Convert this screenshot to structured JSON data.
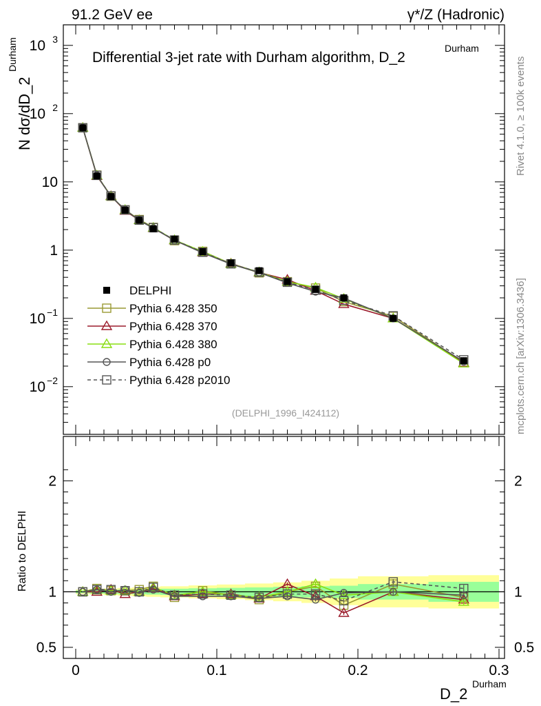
{
  "header": {
    "left": "91.2 GeV ee",
    "right": "γ*/Z (Hadronic)"
  },
  "side_labels": {
    "rivet": "Rivet 4.1.0, ≥ 100k events",
    "mcplots": "mcplots.cern.ch [arXiv:1306.3436]"
  },
  "chart_data": {
    "type": "line",
    "title": "Differential 3-jet rate with Durham algorithm, D_2",
    "title_sup": "Durham",
    "analysis_tag": "(DELPHI_1996_I424112)",
    "xlabel": "D_2",
    "xlabel_sup": "Durham",
    "ylabel": "N  dσ/dD_2",
    "ylabel_sup": "Durham",
    "ratio_ylabel": "Ratio to DELPHI",
    "xlim": [
      0,
      0.3
    ],
    "ylim_log": [
      0.002,
      2000
    ],
    "ratio_ylim": [
      0.4,
      2.4
    ],
    "x_ticks": [
      "0",
      "0.1",
      "0.2",
      "0.3"
    ],
    "x_tick_values": [
      0,
      0.1,
      0.2,
      0.3
    ],
    "y_ticks": [
      {
        "value": 1000,
        "base": "10",
        "exp": "3"
      },
      {
        "value": 100,
        "base": "10",
        "exp": "2"
      },
      {
        "value": 10,
        "base": "10",
        "exp": ""
      },
      {
        "value": 1,
        "base": "1",
        "exp": ""
      },
      {
        "value": 0.1,
        "base": "10",
        "exp": "−1"
      },
      {
        "value": 0.01,
        "base": "10",
        "exp": "−2"
      }
    ],
    "ratio_ticks": [
      "0.5",
      "1",
      "2"
    ],
    "ratio_tick_values": [
      0.5,
      1,
      2
    ],
    "bins": [
      [
        0,
        0.01
      ],
      [
        0.01,
        0.02
      ],
      [
        0.02,
        0.03
      ],
      [
        0.03,
        0.04
      ],
      [
        0.04,
        0.05
      ],
      [
        0.05,
        0.06
      ],
      [
        0.06,
        0.08
      ],
      [
        0.08,
        0.1
      ],
      [
        0.1,
        0.12
      ],
      [
        0.12,
        0.14
      ],
      [
        0.14,
        0.16
      ],
      [
        0.16,
        0.18
      ],
      [
        0.18,
        0.2
      ],
      [
        0.2,
        0.25
      ],
      [
        0.25,
        0.3
      ]
    ],
    "x": [
      0.005,
      0.015,
      0.025,
      0.035,
      0.045,
      0.055,
      0.07,
      0.09,
      0.11,
      0.13,
      0.15,
      0.17,
      0.19,
      0.225,
      0.275
    ],
    "band_inner": [
      0.012,
      0.015,
      0.018,
      0.02,
      0.022,
      0.025,
      0.028,
      0.032,
      0.036,
      0.04,
      0.045,
      0.05,
      0.055,
      0.07,
      0.09
    ],
    "band_outer": [
      0.02,
      0.025,
      0.03,
      0.035,
      0.04,
      0.045,
      0.05,
      0.058,
      0.066,
      0.075,
      0.085,
      0.1,
      0.12,
      0.14,
      0.15
    ],
    "data": {
      "name": "DELPHI",
      "values": [
        62,
        12.2,
        6.1,
        3.85,
        2.75,
        2.05,
        1.45,
        0.95,
        0.65,
        0.5,
        0.345,
        0.265,
        0.2,
        0.1,
        0.024
      ],
      "errors": [
        2.5,
        0.4,
        0.2,
        0.12,
        0.09,
        0.07,
        0.05,
        0.035,
        0.025,
        0.02,
        0.015,
        0.012,
        0.01,
        0.006,
        0.002
      ]
    },
    "series": [
      {
        "name": "Pythia 6.428 350",
        "color": "#999933",
        "marker": "square",
        "dash": "",
        "ratio": [
          1.0,
          1.03,
          1.01,
          1.01,
          1.02,
          1.05,
          0.95,
          1.01,
          0.97,
          0.93,
          1.0,
          1.05,
          0.88,
          1.07,
          0.95
        ]
      },
      {
        "name": "Pythia 6.428 370",
        "color": "#9b1b2b",
        "marker": "triangle",
        "dash": "",
        "ratio": [
          1.0,
          1.0,
          1.02,
          0.98,
          1.0,
          1.03,
          0.96,
          0.98,
          0.98,
          0.94,
          1.07,
          0.96,
          0.81,
          1.0,
          0.93
        ]
      },
      {
        "name": "Pythia 6.428 380",
        "color": "#88dd11",
        "marker": "triangle",
        "dash": "",
        "ratio": [
          1.0,
          1.02,
          1.01,
          1.01,
          1.0,
          1.04,
          0.97,
          1.0,
          0.97,
          0.95,
          1.0,
          1.07,
          0.97,
          1.0,
          0.91
        ]
      },
      {
        "name": "Pythia 6.428 p0",
        "color": "#555555",
        "marker": "circle",
        "dash": "",
        "ratio": [
          1.0,
          1.02,
          1.0,
          1.02,
          0.99,
          1.02,
          0.96,
          0.96,
          0.96,
          0.94,
          0.96,
          0.93,
          0.99,
          1.0,
          0.97
        ]
      },
      {
        "name": "Pythia 6.428 p2010",
        "color": "#555555",
        "marker": "square",
        "dash": "5,4",
        "ratio": [
          1.0,
          1.02,
          1.02,
          1.01,
          1.0,
          1.04,
          0.97,
          0.98,
          0.97,
          0.95,
          0.98,
          0.98,
          0.92,
          1.09,
          1.03
        ]
      }
    ]
  }
}
